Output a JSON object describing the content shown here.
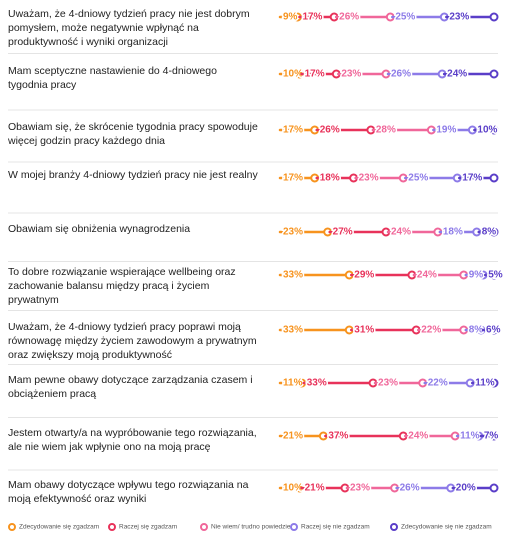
{
  "chart_data": {
    "type": "stacked-bar",
    "categories": [
      "Uważam, że 4-dniowy tydzień pracy nie jest dobrym pomysłem, może negatywnie wpłynąć na produktywność i wyniki organizacji",
      "Mam sceptyczne nastawienie do 4-dniowego tygodnia pracy",
      "Obawiam się, że skrócenie tygodnia pracy spowoduje więcej godzin pracy każdego dnia",
      "W mojej branży 4-dniowy tydzień pracy nie jest realny",
      "Obawiam się obniżenia wynagrodzenia",
      "To dobre rozwiązanie wspierające wellbeing oraz zachowanie balansu między pracą i życiem prywatnym",
      "Uważam, że 4-dniowy tydzień pracy poprawi moją równowagę między życiem zawodowym a prywatnym oraz zwiększy moją produktywność",
      "Mam pewne obawy dotyczące zarządzania czasem i obciążeniem pracą",
      "Jestem otwarty/a na wypróbowanie tego rozwiązania, ale nie wiem jak wpłynie ono na moją pracę",
      "Mam obawy dotyczące wpływu tego rozwiązania na moją efektywność oraz wyniki"
    ],
    "xlim": [
      0,
      100
    ],
    "series": [
      {
        "name": "Zdecydowanie się zgadzam",
        "color": "#f7931e",
        "values": [
          9,
          10,
          17,
          17,
          23,
          33,
          33,
          11,
          21,
          10
        ],
        "value_labels": [
          "9%",
          "10%",
          "17%",
          "17%",
          "23%",
          "33%",
          "33%",
          "11%",
          "21%",
          "10%"
        ]
      },
      {
        "name": "Raczej się zgadzam",
        "color": "#e8325a",
        "values": [
          17,
          17,
          26,
          18,
          27,
          29,
          31,
          33,
          37,
          21
        ],
        "value_labels": [
          "17%",
          "17%",
          "26%",
          "18%",
          "27%",
          "29%",
          "31%",
          "33%",
          "37%",
          "21%"
        ]
      },
      {
        "name": "Nie wiem/ trudno powiedzieć",
        "color": "#f0679a",
        "values": [
          26,
          23,
          28,
          23,
          24,
          24,
          22,
          23,
          24,
          23
        ],
        "value_labels": [
          "26%",
          "23%",
          "28%",
          "23%",
          "24%",
          "24%",
          "22%",
          "23%",
          "24%",
          "23%"
        ]
      },
      {
        "name": "Raczej się nie zgadzam",
        "color": "#8d7be8",
        "values": [
          25,
          26,
          19,
          25,
          18,
          9,
          8,
          22,
          11,
          26
        ],
        "value_labels": [
          "25%",
          "26%",
          "19%",
          "25%",
          "18%",
          "9%",
          "8%",
          "22%",
          "11%",
          "26%"
        ]
      },
      {
        "name": "Zdecydowanie się nie zgadzam",
        "color": "#5a3ec8",
        "values": [
          23,
          24,
          10,
          17,
          8,
          5,
          6,
          11,
          7,
          20
        ],
        "value_labels": [
          "23%",
          "24%",
          "10%",
          "17%",
          "8%",
          "5%",
          "6%",
          "11%",
          "7%",
          "20%"
        ]
      }
    ]
  }
}
